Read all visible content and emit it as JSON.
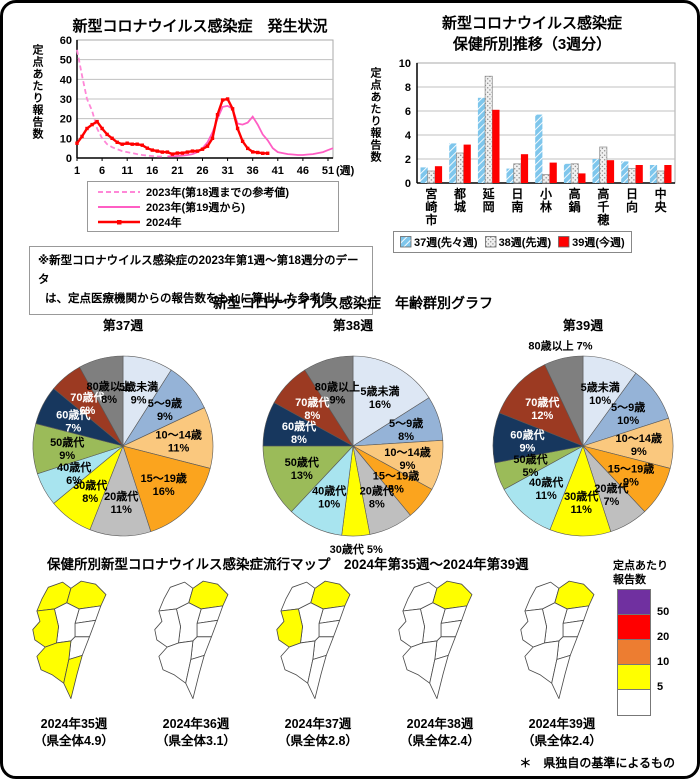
{
  "line_chart_block": {
    "title": "新型コロナウイルス感染症　発生状況",
    "ylabel_chars": "定点あたり報告数",
    "note_line1": "※新型コロナウイルス感染症の2023年第1週～第18週分のデータ",
    "note_line2": "は、定点医療機関からの報告数をもとに算出した参考値"
  },
  "bar_chart_block": {
    "title_line1": "新型コロナウイルス感染症",
    "title_line2": "保健所別推移（3週分）",
    "ylabel_chars": "定点あたり報告数"
  },
  "pie_section": {
    "title": "新型コロナウイルス感染症　年齢群別グラフ"
  },
  "map_section": {
    "title": "保健所別新型コロナウイルス感染症流行マップ　2024年第35週～2024年第39週",
    "footnote": "＊　県独自の基準によるもの",
    "legend": {
      "title_line1": "定点あたり",
      "title_line2": "報告数",
      "bands": [
        {
          "color": "#7030A0",
          "label": ""
        },
        {
          "color": "#FF0000",
          "label": "50"
        },
        {
          "color": "#ED7D31",
          "label": "20"
        },
        {
          "color": "#FFFF00",
          "label": "10"
        },
        {
          "color": "#FFFFFF",
          "label": "5"
        }
      ]
    },
    "maps": [
      {
        "week_label": "2024年35週",
        "total_label": "（県全体4.9）",
        "yellow": [
          "高千穂",
          "延岡",
          "小林",
          "都城",
          "日南"
        ]
      },
      {
        "week_label": "2024年36週",
        "total_label": "（県全体3.1）",
        "yellow": [
          "延岡"
        ]
      },
      {
        "week_label": "2024年37週",
        "total_label": "（県全体2.8）",
        "yellow": [
          "延岡",
          "小林"
        ]
      },
      {
        "week_label": "2024年38週",
        "total_label": "（県全体2.4）",
        "yellow": [
          "延岡"
        ]
      },
      {
        "week_label": "2024年39週",
        "total_label": "（県全体2.4）",
        "yellow": [
          "延岡"
        ]
      }
    ]
  },
  "chart_data": [
    {
      "id": "weekly-incidence-line",
      "type": "line",
      "title": "新型コロナウイルス感染症　発生状況",
      "ylabel": "定点あたり報告数",
      "xlabel": "(週)",
      "ylim": [
        0,
        60
      ],
      "yticks": [
        0,
        10,
        20,
        30,
        40,
        50,
        60
      ],
      "xticks": [
        1,
        6,
        11,
        16,
        21,
        26,
        31,
        36,
        41,
        46,
        51
      ],
      "xmax": 52,
      "series": [
        {
          "name": "2023年(第18週までの参考値)",
          "style": "dashed",
          "color": "#FF87D7",
          "x_start": 1,
          "values": [
            55,
            42,
            30,
            24,
            15,
            10,
            7,
            5.5,
            4.5,
            3.5,
            3,
            2.5,
            2,
            1.5,
            1.2,
            1,
            0.8,
            0.7
          ]
        },
        {
          "name": "2023年(第19週から)",
          "style": "solid",
          "color": "#FF5EC4",
          "x_start": 19,
          "values": [
            0.8,
            0.8,
            1,
            1.2,
            1.5,
            2,
            3,
            5,
            8,
            13,
            20,
            26,
            26.5,
            25,
            17.5,
            17,
            18,
            21,
            17,
            12,
            9,
            5,
            3,
            2.5,
            2,
            1.8,
            1.5,
            1.5,
            1.8,
            2,
            2.5,
            3,
            4,
            5
          ]
        },
        {
          "name": "2024年",
          "style": "marker",
          "color": "#FF0000",
          "x_start": 1,
          "values": [
            7.5,
            11,
            15,
            17,
            18.5,
            15,
            12,
            10,
            8,
            7,
            7.5,
            7,
            7,
            6.5,
            5,
            4,
            3.5,
            3,
            3,
            2,
            2.5,
            2.5,
            3,
            3.5,
            3.5,
            4.5,
            6,
            10,
            22,
            29.5,
            30,
            25,
            15,
            8.5,
            4.9,
            3.1,
            2.8,
            2.4,
            2.4
          ]
        }
      ]
    },
    {
      "id": "health-center-bars",
      "type": "bar",
      "title": "新型コロナウイルス感染症　保健所別推移（3週分）",
      "ylabel": "定点あたり報告数",
      "ylim": [
        0,
        10
      ],
      "yticks": [
        0,
        2,
        4,
        6,
        8,
        10
      ],
      "categories": [
        "宮崎市",
        "都城",
        "延岡",
        "日南",
        "小林",
        "高鍋",
        "高千穂",
        "日向",
        "中央"
      ],
      "series": [
        {
          "name": "37週(先々週)",
          "fill": "diagonal-hatch",
          "color": "#7EC6EC",
          "values": [
            1.3,
            3.3,
            7.1,
            1.2,
            5.7,
            1.6,
            2.0,
            1.8,
            1.5
          ]
        },
        {
          "name": "38週(先週)",
          "fill": "dots",
          "color": "#F0F0F0",
          "values": [
            1.0,
            2.5,
            8.9,
            1.6,
            0.7,
            1.6,
            3.0,
            1.2,
            1.0
          ]
        },
        {
          "name": "39週(今週)",
          "fill": "solid",
          "color": "#FF0000",
          "values": [
            1.4,
            3.2,
            6.1,
            2.4,
            1.7,
            0.8,
            1.9,
            1.5,
            1.5
          ]
        }
      ]
    },
    {
      "id": "age-pie-week37",
      "type": "pie",
      "title": "第37週",
      "labels": [
        "5歳未満",
        "5～9歳",
        "10～14歳",
        "15～19歳",
        "20歳代",
        "30歳代",
        "40歳代",
        "50歳代",
        "60歳代",
        "70歳代",
        "80歳以上"
      ],
      "values": [
        9,
        9,
        11,
        16,
        11,
        8,
        6,
        9,
        7,
        6,
        8
      ],
      "colors": [
        "#DDE7F4",
        "#95B3D7",
        "#FAC87E",
        "#FBA41E",
        "#BFBFBF",
        "#FFFF00",
        "#A8E4EF",
        "#9BBB59",
        "#17375E",
        "#9C3A22",
        "#7F7F7F"
      ],
      "outside_labels": []
    },
    {
      "id": "age-pie-week38",
      "type": "pie",
      "title": "第38週",
      "labels": [
        "5歳未満",
        "5～9歳",
        "10～14歳",
        "15～19歳",
        "20歳代",
        "30歳代",
        "40歳代",
        "50歳代",
        "60歳代",
        "70歳代",
        "80歳以上"
      ],
      "values": [
        16,
        8,
        9,
        6,
        8,
        5,
        10,
        13,
        8,
        8,
        9
      ],
      "colors": [
        "#DDE7F4",
        "#95B3D7",
        "#FAC87E",
        "#FBA41E",
        "#BFBFBF",
        "#FFFF00",
        "#A8E4EF",
        "#9BBB59",
        "#17375E",
        "#9C3A22",
        "#7F7F7F"
      ],
      "outside_labels": [
        "30歳代"
      ]
    },
    {
      "id": "age-pie-week39",
      "type": "pie",
      "title": "第39週",
      "labels": [
        "5歳未満",
        "5～9歳",
        "10～14歳",
        "15～19歳",
        "20歳代",
        "30歳代",
        "40歳代",
        "50歳代",
        "60歳代",
        "70歳代",
        "80歳以上"
      ],
      "values": [
        10,
        10,
        9,
        9,
        7,
        11,
        11,
        5,
        9,
        12,
        7
      ],
      "colors": [
        "#DDE7F4",
        "#95B3D7",
        "#FAC87E",
        "#FBA41E",
        "#BFBFBF",
        "#FFFF00",
        "#A8E4EF",
        "#9BBB59",
        "#17375E",
        "#9C3A22",
        "#7F7F7F"
      ],
      "outside_labels": [
        "80歳以上"
      ]
    }
  ]
}
